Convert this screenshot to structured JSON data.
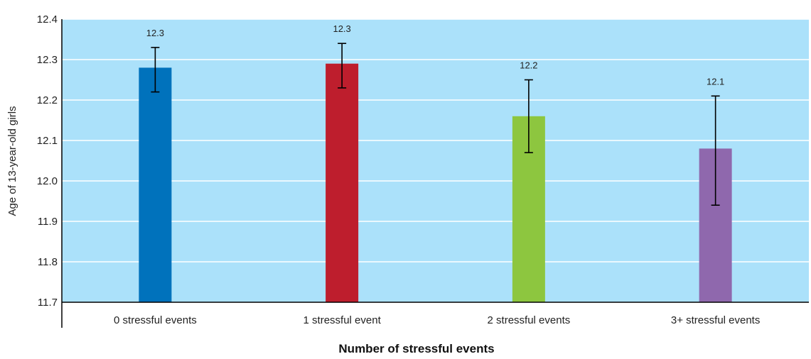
{
  "chart_data": {
    "type": "bar",
    "categories": [
      "0 stressful events",
      "1 stressful event",
      "2 stressful events",
      "3+ stressful events"
    ],
    "values": [
      12.28,
      12.29,
      12.16,
      12.08
    ],
    "data_labels": [
      "12.3",
      "12.3",
      "12.2",
      "12.1"
    ],
    "error_low": [
      12.22,
      12.23,
      12.07,
      11.94
    ],
    "error_high": [
      12.33,
      12.34,
      12.25,
      12.21
    ],
    "bar_colors": [
      "#0072bc",
      "#be1e2d",
      "#8dc63f",
      "#8f68ad"
    ],
    "ylim": [
      11.7,
      12.4
    ],
    "yticks": [
      "11.7",
      "11.8",
      "11.9",
      "12.0",
      "12.1",
      "12.2",
      "12.3",
      "12.4"
    ],
    "ylabel": "Age of 13-year-old girls",
    "xlabel": "Number of stressful events",
    "title": "",
    "grid": true,
    "plot_background": "#abe1fa",
    "gridline_color": "#ffffff"
  }
}
